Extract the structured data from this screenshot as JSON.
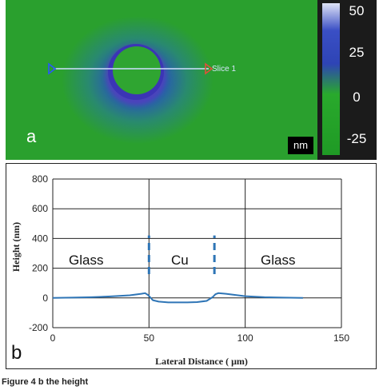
{
  "panel_a": {
    "label": "a",
    "slice_label": "Slice 1",
    "unit": "nm",
    "colorbar_ticks": [
      "50",
      "25",
      "0",
      "-25"
    ],
    "colors": {
      "surface": "#2aa02e",
      "pit": "#3b35b5",
      "slice_line": "#cfe0ff",
      "slice_start": "#2a55ff",
      "slice_end": "#e0503a"
    }
  },
  "panel_b": {
    "label": "b",
    "region_labels": [
      "Glass",
      "Cu",
      "Glass"
    ]
  },
  "caption": "Figure 4  b the height",
  "chart_data": {
    "type": "line",
    "xlabel": "Lateral Distance ( μm)",
    "ylabel": "Height (nm)",
    "xlim": [
      0,
      150
    ],
    "ylim": [
      -200,
      800
    ],
    "xticks": [
      0,
      50,
      100,
      150
    ],
    "yticks": [
      -200,
      0,
      200,
      400,
      600,
      800
    ],
    "grid": true,
    "series": [
      {
        "color": "#2e75b6",
        "x": [
          0,
          10,
          20,
          30,
          40,
          46,
          48,
          49.5,
          52,
          55,
          60,
          65,
          70,
          75,
          80,
          83,
          84.5,
          86,
          90,
          95,
          100,
          110,
          120,
          130
        ],
        "y": [
          0,
          2,
          5,
          10,
          18,
          28,
          32,
          20,
          -15,
          -25,
          -30,
          -30,
          -30,
          -28,
          -20,
          5,
          25,
          32,
          28,
          20,
          12,
          5,
          2,
          0
        ]
      }
    ],
    "dashed_markers": [
      {
        "x": 50,
        "y": [
          160,
          420
        ]
      },
      {
        "x": 84,
        "y": [
          160,
          420
        ]
      }
    ]
  }
}
